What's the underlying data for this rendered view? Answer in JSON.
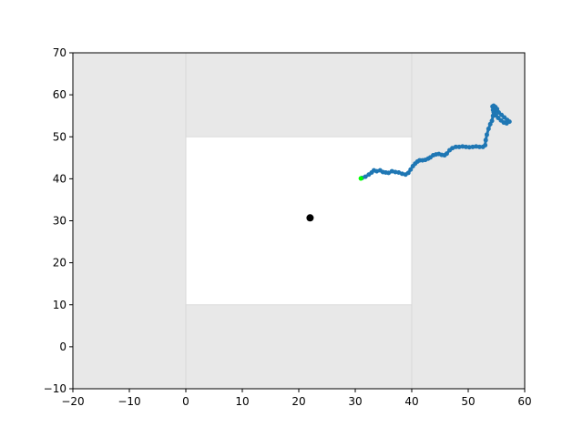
{
  "chart_data": {
    "type": "scatter",
    "title": "",
    "xlabel": "",
    "ylabel": "",
    "xlim": [
      -20,
      60
    ],
    "ylim": [
      -10,
      70
    ],
    "x_ticks": [
      -20,
      -10,
      0,
      10,
      20,
      30,
      40,
      50,
      60
    ],
    "y_ticks": [
      -10,
      0,
      10,
      20,
      30,
      40,
      50,
      60,
      70
    ],
    "x_tick_labels": [
      "−20",
      "−10",
      "0",
      "10",
      "20",
      "30",
      "40",
      "50",
      "60"
    ],
    "y_tick_labels": [
      "−10",
      "0",
      "10",
      "20",
      "30",
      "40",
      "50",
      "60",
      "70"
    ],
    "grid": false,
    "background_color": "#e8e8e8",
    "regions": [
      {
        "x": [
          0,
          40
        ],
        "y": [
          10,
          50
        ],
        "color": "#ffffff"
      }
    ],
    "guide_lines": [
      {
        "orientation": "vertical",
        "value": 0,
        "color": "#d8d8d8"
      },
      {
        "orientation": "vertical",
        "value": 40,
        "color": "#d8d8d8"
      }
    ],
    "series": [
      {
        "color": "#1f77b4",
        "x": [
          31.2,
          31.8,
          32.4,
          32.9,
          33.3,
          33.8,
          34.4,
          34.9,
          35.4,
          35.9,
          36.5,
          37.1,
          37.7,
          38.3,
          38.9,
          39.4,
          39.8,
          40.2,
          40.6,
          41.0,
          41.4,
          41.9,
          42.4,
          42.9,
          43.3,
          43.8,
          44.3,
          44.8,
          45.3,
          45.8,
          46.2,
          46.7,
          47.2,
          47.8,
          48.4,
          49.0,
          49.6,
          50.2,
          50.8,
          51.4,
          52.0,
          52.6,
          53.0,
          53.1,
          53.3,
          53.6,
          53.9,
          54.2,
          54.4,
          54.5,
          54.6,
          54.7,
          55.0,
          55.4,
          55.9,
          56.4,
          56.9,
          57.3,
          56.8,
          56.3,
          55.8,
          55.3,
          54.9,
          54.6,
          54.4,
          54.3,
          54.5,
          54.8,
          55.1
        ],
        "y": [
          40.2,
          40.5,
          41.0,
          41.5,
          42.0,
          41.8,
          42.0,
          41.6,
          41.5,
          41.4,
          41.8,
          41.6,
          41.5,
          41.2,
          41.0,
          41.4,
          42.2,
          43.0,
          43.6,
          44.1,
          44.4,
          44.4,
          44.5,
          44.8,
          45.1,
          45.6,
          45.8,
          45.9,
          45.7,
          45.6,
          46.0,
          46.8,
          47.3,
          47.6,
          47.6,
          47.7,
          47.6,
          47.5,
          47.6,
          47.7,
          47.6,
          47.6,
          48.0,
          49.2,
          50.5,
          51.9,
          53.0,
          53.8,
          55.0,
          55.9,
          56.5,
          57.0,
          56.3,
          55.8,
          55.2,
          54.6,
          54.0,
          53.6,
          53.2,
          53.4,
          53.9,
          54.5,
          55.1,
          55.7,
          56.4,
          57.2,
          57.4,
          57.1,
          56.6
        ]
      },
      {
        "color": "#00ff00",
        "x": [
          31.0
        ],
        "y": [
          40.1
        ]
      },
      {
        "color": "#000000",
        "x": [
          22.0
        ],
        "y": [
          30.7
        ]
      }
    ]
  }
}
